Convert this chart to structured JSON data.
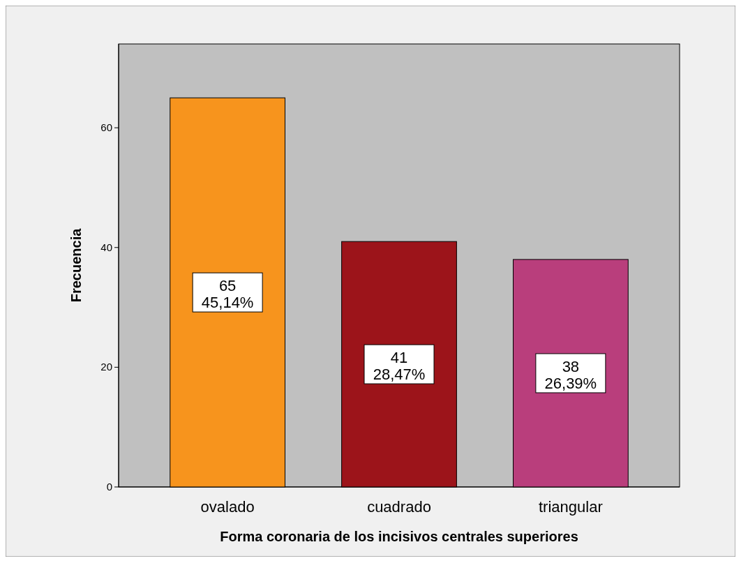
{
  "chart_data": {
    "type": "bar",
    "xlabel": "Forma coronaria de los incisivos centrales superiores",
    "ylabel": "Frecuencia",
    "categories": [
      "ovalado",
      "cuadrado",
      "triangular"
    ],
    "values": [
      65,
      41,
      38
    ],
    "colors": [
      "#f7941d",
      "#9c141a",
      "#b93e7c"
    ],
    "value_labels": [
      "65\n45,14%",
      "41\n28,47%",
      "38\n26,39%"
    ],
    "ylim": [
      0,
      74
    ],
    "yticks": [
      0,
      20,
      40,
      60
    ]
  }
}
